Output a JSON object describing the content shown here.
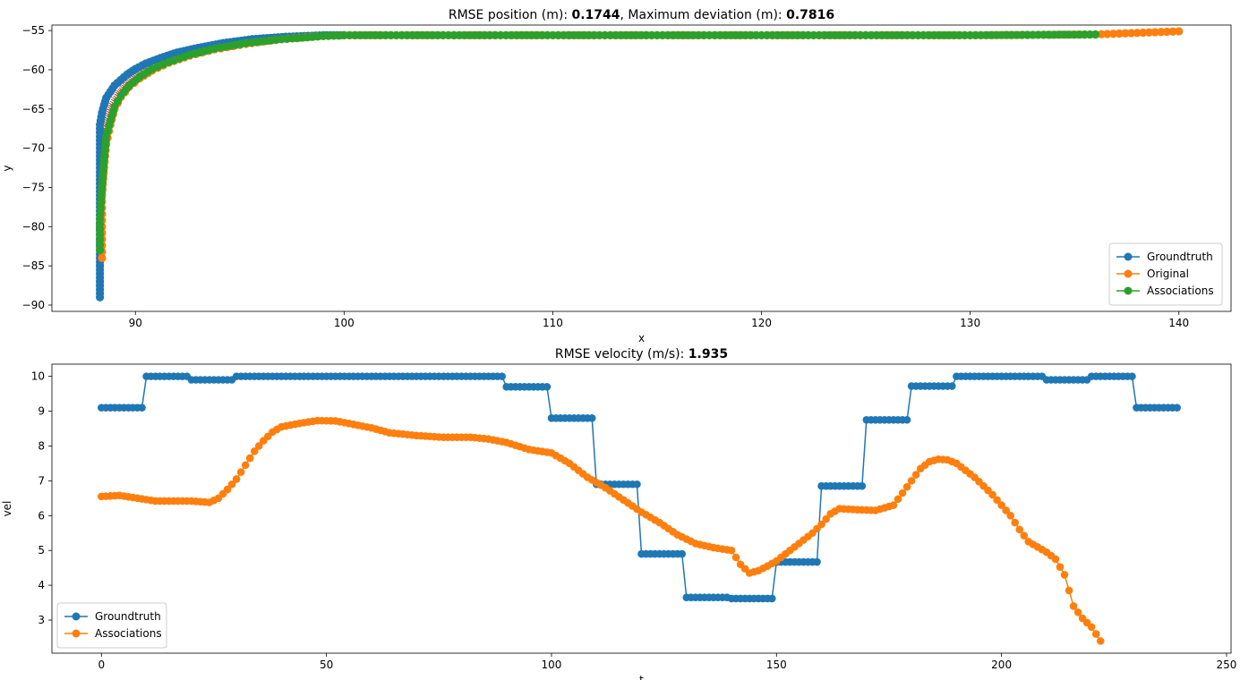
{
  "chart_data": [
    {
      "type": "scatter",
      "title_parts": [
        {
          "text": "RMSE position (m): ",
          "bold": false
        },
        {
          "text": "0.1744",
          "bold": true
        },
        {
          "text": ", Maximum deviation (m): ",
          "bold": false
        },
        {
          "text": "0.7816",
          "bold": true
        }
      ],
      "xlabel": "x",
      "ylabel": "y",
      "xlim": [
        86.0,
        142.5
      ],
      "ylim": [
        -90.8,
        -54.3
      ],
      "xticks": [
        90,
        100,
        110,
        120,
        130,
        140
      ],
      "yticks": [
        -55,
        -60,
        -65,
        -70,
        -75,
        -80,
        -85,
        -90
      ],
      "xticklabels": [
        "90",
        "100",
        "110",
        "120",
        "130",
        "140"
      ],
      "yticklabels": [
        "−55",
        "−60",
        "−65",
        "−70",
        "−75",
        "−80",
        "−85",
        "−90"
      ],
      "legend": {
        "location": "lower-right",
        "entries": [
          "Groundtruth",
          "Original",
          "Associations"
        ]
      },
      "colors": {
        "Groundtruth": "#1f77b4",
        "Original": "#ff7f0e",
        "Associations": "#2ca02c",
        "deviation": "#d62728"
      },
      "series": [
        {
          "name": "Groundtruth",
          "x": [
            88.3,
            88.3,
            88.3,
            88.3,
            88.3,
            88.3,
            88.3,
            88.3,
            88.4,
            88.5,
            88.6,
            88.8,
            89.0,
            89.3,
            89.6,
            90.0,
            90.5,
            91.2,
            92.0,
            93.0,
            94.2,
            95.6,
            97.2,
            99.0,
            100.0
          ],
          "y": [
            -89.0,
            -87.0,
            -84.0,
            -80.0,
            -76.0,
            -72.0,
            -69.0,
            -67.0,
            -65.5,
            -64.5,
            -63.6,
            -62.8,
            -62.0,
            -61.3,
            -60.6,
            -59.9,
            -59.2,
            -58.5,
            -57.8,
            -57.2,
            -56.6,
            -56.1,
            -55.8,
            -55.6,
            -55.6
          ]
        },
        {
          "name": "Original",
          "x": [
            88.4,
            88.4,
            88.4,
            88.5,
            88.6,
            88.8,
            89.0,
            89.3,
            89.7,
            90.2,
            90.8,
            91.6,
            92.6,
            93.8,
            95.3,
            97.0,
            99.0,
            100.0,
            110.0,
            120.0,
            130.0,
            136.0,
            138.0,
            140.0
          ],
          "y": [
            -84.0,
            -80.0,
            -76.0,
            -72.5,
            -69.5,
            -67.0,
            -65.0,
            -63.5,
            -62.2,
            -61.1,
            -60.1,
            -59.1,
            -58.2,
            -57.4,
            -56.7,
            -56.1,
            -55.7,
            -55.6,
            -55.6,
            -55.6,
            -55.6,
            -55.5,
            -55.3,
            -55.1
          ]
        },
        {
          "name": "Associations",
          "x": [
            88.3,
            88.3,
            88.4,
            88.5,
            88.6,
            88.8,
            89.0,
            89.3,
            89.7,
            90.2,
            90.8,
            91.6,
            92.6,
            93.8,
            95.3,
            97.0,
            99.0,
            100.0,
            110.0,
            120.0,
            130.0,
            136.0
          ],
          "y": [
            -83.0,
            -79.0,
            -75.0,
            -71.5,
            -68.5,
            -66.5,
            -64.7,
            -63.3,
            -62.0,
            -60.9,
            -59.9,
            -59.0,
            -58.1,
            -57.3,
            -56.6,
            -56.1,
            -55.7,
            -55.6,
            -55.6,
            -55.6,
            -55.6,
            -55.5
          ]
        }
      ]
    },
    {
      "type": "line",
      "title_parts": [
        {
          "text": "RMSE velocity (m/s): ",
          "bold": false
        },
        {
          "text": "1.935",
          "bold": true
        }
      ],
      "xlabel": "t",
      "ylabel": "vel",
      "xlim": [
        -11,
        251
      ],
      "ylim": [
        2.05,
        10.35
      ],
      "xticks": [
        0,
        50,
        100,
        150,
        200,
        250
      ],
      "yticks": [
        3,
        4,
        5,
        6,
        7,
        8,
        9,
        10
      ],
      "xticklabels": [
        "0",
        "50",
        "100",
        "150",
        "200",
        "250"
      ],
      "yticklabels": [
        "3",
        "4",
        "5",
        "6",
        "7",
        "8",
        "9",
        "10"
      ],
      "legend": {
        "location": "lower-left",
        "entries": [
          "Groundtruth",
          "Associations"
        ]
      },
      "colors": {
        "Groundtruth": "#1f77b4",
        "Associations": "#ff7f0e"
      },
      "groundtruth_steps": [
        {
          "t_start": 0,
          "t_end": 9,
          "v": 9.1
        },
        {
          "t_start": 10,
          "t_end": 19,
          "v": 10.0
        },
        {
          "t_start": 20,
          "t_end": 29,
          "v": 9.9
        },
        {
          "t_start": 30,
          "t_end": 89,
          "v": 10.0
        },
        {
          "t_start": 90,
          "t_end": 99,
          "v": 9.7
        },
        {
          "t_start": 100,
          "t_end": 109,
          "v": 8.8
        },
        {
          "t_start": 110,
          "t_end": 119,
          "v": 6.9
        },
        {
          "t_start": 120,
          "t_end": 129,
          "v": 4.9
        },
        {
          "t_start": 130,
          "t_end": 139,
          "v": 3.65
        },
        {
          "t_start": 140,
          "t_end": 149,
          "v": 3.62
        },
        {
          "t_start": 150,
          "t_end": 159,
          "v": 4.67
        },
        {
          "t_start": 160,
          "t_end": 169,
          "v": 6.85
        },
        {
          "t_start": 170,
          "t_end": 179,
          "v": 8.75
        },
        {
          "t_start": 180,
          "t_end": 189,
          "v": 9.72
        },
        {
          "t_start": 190,
          "t_end": 209,
          "v": 10.0
        },
        {
          "t_start": 210,
          "t_end": 219,
          "v": 9.9
        },
        {
          "t_start": 220,
          "t_end": 229,
          "v": 10.0
        },
        {
          "t_start": 230,
          "t_end": 239,
          "v": 9.1
        }
      ],
      "associations": {
        "t": [
          0,
          4,
          8,
          12,
          16,
          20,
          24,
          26,
          28,
          30,
          32,
          34,
          36,
          38,
          40,
          44,
          48,
          52,
          56,
          60,
          64,
          70,
          76,
          82,
          86,
          90,
          95,
          100,
          104,
          108,
          112,
          116,
          120,
          124,
          128,
          132,
          136,
          140,
          142,
          144,
          146,
          148,
          150,
          152,
          154,
          156,
          158,
          160,
          162,
          164,
          168,
          172,
          176,
          178,
          180,
          182,
          184,
          186,
          188,
          190,
          192,
          194,
          196,
          198,
          200,
          202,
          204,
          206,
          208,
          210,
          212,
          214,
          216,
          218,
          220,
          222
        ],
        "v": [
          6.55,
          6.58,
          6.5,
          6.42,
          6.42,
          6.42,
          6.38,
          6.5,
          6.75,
          7.05,
          7.45,
          7.85,
          8.15,
          8.4,
          8.55,
          8.65,
          8.73,
          8.72,
          8.62,
          8.52,
          8.38,
          8.3,
          8.25,
          8.25,
          8.2,
          8.1,
          7.9,
          7.8,
          7.5,
          7.1,
          6.8,
          6.45,
          6.1,
          5.8,
          5.45,
          5.2,
          5.08,
          5.0,
          4.6,
          4.35,
          4.42,
          4.55,
          4.7,
          4.9,
          5.1,
          5.3,
          5.5,
          5.75,
          6.05,
          6.2,
          6.17,
          6.15,
          6.3,
          6.65,
          7.0,
          7.35,
          7.55,
          7.62,
          7.6,
          7.5,
          7.3,
          7.1,
          6.85,
          6.6,
          6.3,
          6.0,
          5.6,
          5.25,
          5.1,
          4.95,
          4.75,
          4.3,
          3.4,
          3.05,
          2.8,
          2.4
        ]
      }
    }
  ]
}
